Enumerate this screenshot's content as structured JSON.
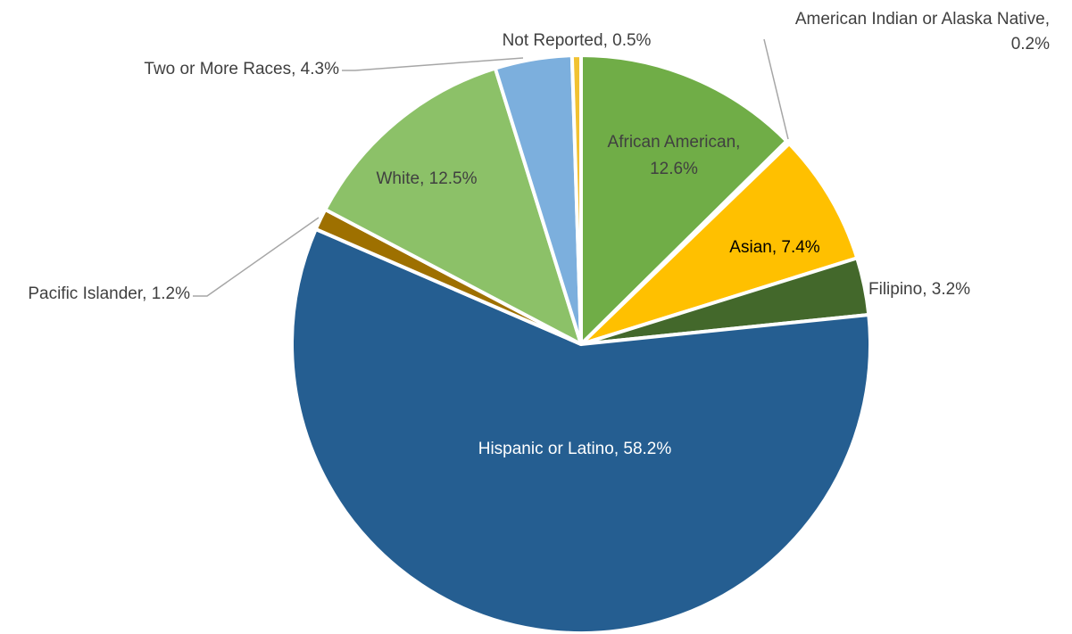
{
  "chart_data": {
    "type": "pie",
    "title": "",
    "start_angle_deg": 0,
    "direction": "clockwise",
    "slices": [
      {
        "name": "African American",
        "value": 12.6,
        "label_lines": [
          "African American,",
          "12.6%"
        ],
        "color": "#70AD47",
        "label_color": "#404040"
      },
      {
        "name": "American Indian or Alaska Native",
        "value": 0.2,
        "label_lines": [
          "American Indian or Alaska Native,",
          "0.2%"
        ],
        "color": "#A9D18E",
        "label_color": "#404040"
      },
      {
        "name": "Asian",
        "value": 7.4,
        "label_lines": [
          "Asian, 7.4%"
        ],
        "color": "#FFC000",
        "label_color": "#000000"
      },
      {
        "name": "Filipino",
        "value": 3.2,
        "label_lines": [
          "Filipino, 3.2%"
        ],
        "color": "#43682B",
        "label_color": "#404040"
      },
      {
        "name": "Hispanic or Latino",
        "value": 58.2,
        "label_lines": [
          "Hispanic or Latino, 58.2%"
        ],
        "color": "#255E91",
        "label_color": "#FFFFFF"
      },
      {
        "name": "Pacific Islander",
        "value": 1.2,
        "label_lines": [
          "Pacific Islander, 1.2%"
        ],
        "color": "#9E7000",
        "label_color": "#404040"
      },
      {
        "name": "White",
        "value": 12.5,
        "label_lines": [
          "White, 12.5%"
        ],
        "color": "#8CC168",
        "label_color": "#404040"
      },
      {
        "name": "Two or More Races",
        "value": 4.3,
        "label_lines": [
          "Two or More Races, 4.3%"
        ],
        "color": "#7CAFDD",
        "label_color": "#404040"
      },
      {
        "name": "Not Reported",
        "value": 0.5,
        "label_lines": [
          "Not Reported, 0.5%"
        ],
        "color": "#F1C232",
        "label_color": "#404040"
      }
    ]
  }
}
